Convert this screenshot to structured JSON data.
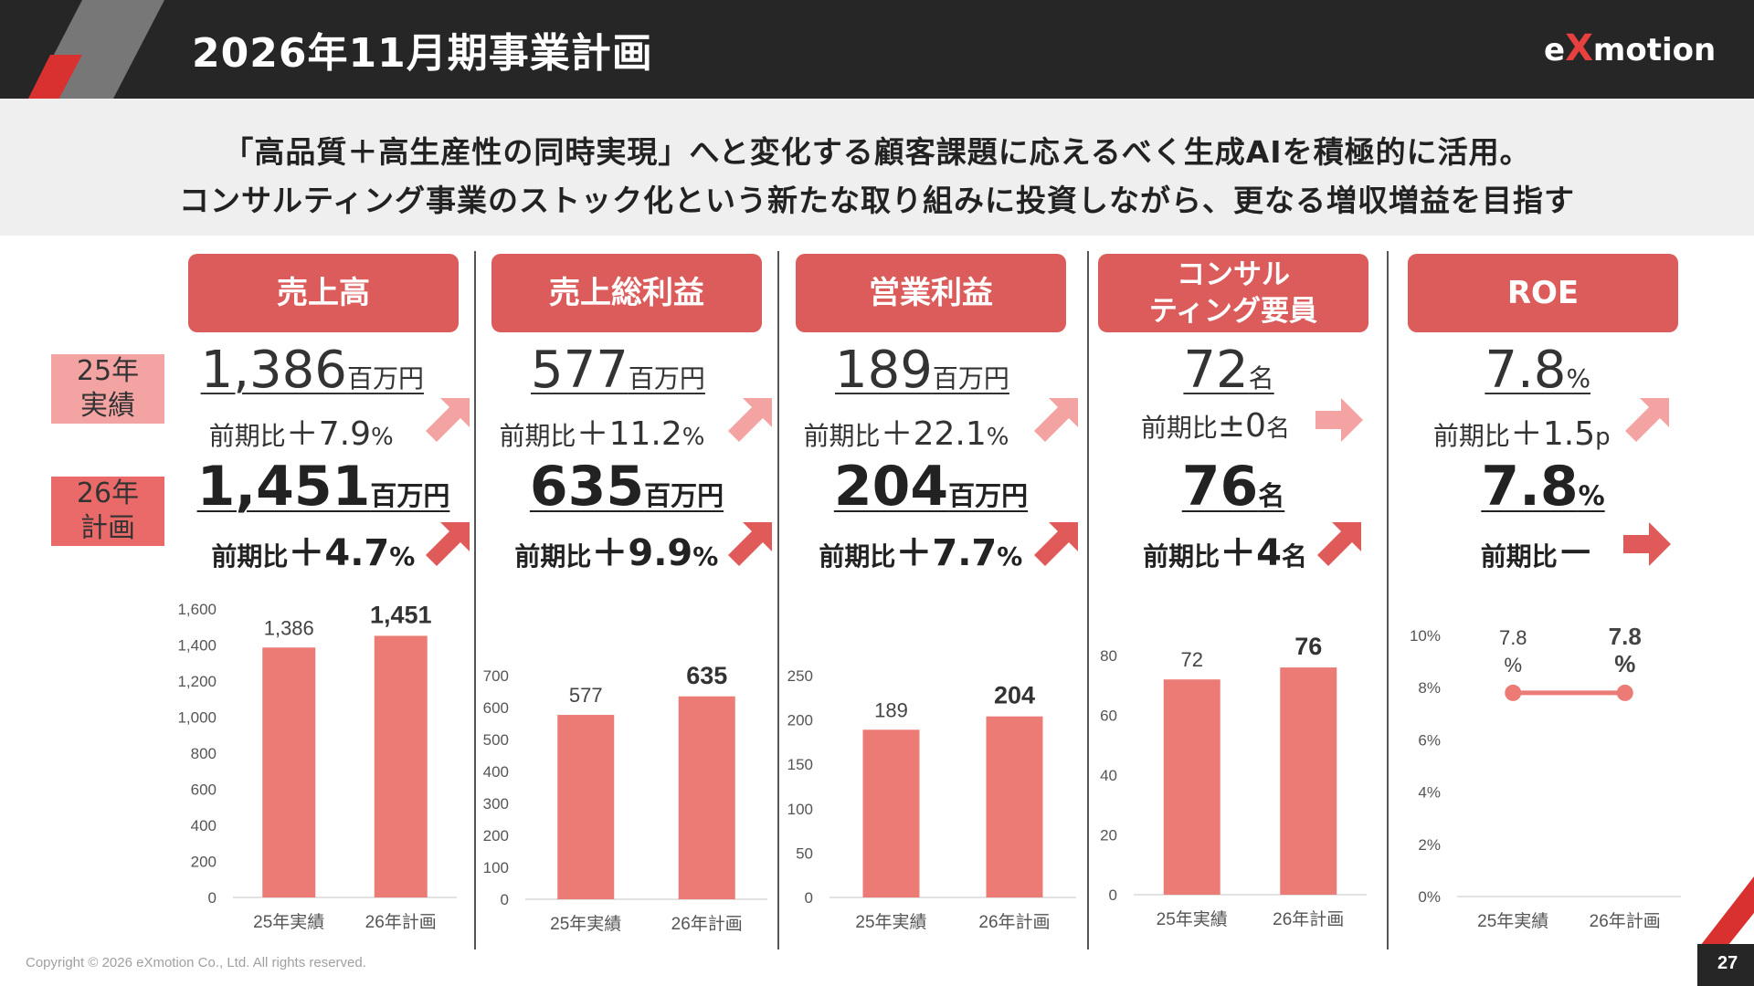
{
  "header": {
    "title": "2026年11月期事業計画",
    "logo_pre": "e",
    "logo_x": "X",
    "logo_post": "motion"
  },
  "subtitle": {
    "line1": "「高品質＋高生産性の同時実現」へと変化する顧客課題に応えるべく生成AIを積極的に活用。",
    "line2": "コンサルティング事業のストック化という新たな取り組みに投資しながら、更なる増収増益を目指す"
  },
  "labels": {
    "y25": "25年\n実績",
    "y26": "26年\n計画"
  },
  "colors": {
    "header_bg": "#262626",
    "accent": "#dc5c5c",
    "bar": "#ec7b76",
    "arrow_light": "#f4a3a3",
    "arrow_dark": "#e05a5a"
  },
  "kpis": [
    {
      "title": "売上高",
      "v25": "1,386",
      "u25": "百万円",
      "c25_pre": "前期比",
      "c25_sign": "＋",
      "c25_val": "7.9",
      "c25_unit": "%",
      "v26": "1,451",
      "u26": "百万円",
      "c26_pre": "前期比",
      "c26_sign": "＋",
      "c26_val": "4.7",
      "c26_unit": "%",
      "arrow25": "up",
      "arrow26": "up"
    },
    {
      "title": "売上総利益",
      "v25": "577",
      "u25": "百万円",
      "c25_pre": "前期比",
      "c25_sign": "＋",
      "c25_val": "11.2",
      "c25_unit": "%",
      "v26": "635",
      "u26": "百万円",
      "c26_pre": "前期比",
      "c26_sign": "＋",
      "c26_val": "9.9",
      "c26_unit": "%",
      "arrow25": "up",
      "arrow26": "up"
    },
    {
      "title": "営業利益",
      "v25": "189",
      "u25": "百万円",
      "c25_pre": "前期比",
      "c25_sign": "＋",
      "c25_val": "22.1",
      "c25_unit": "%",
      "v26": "204",
      "u26": "百万円",
      "c26_pre": "前期比",
      "c26_sign": "＋",
      "c26_val": "7.7",
      "c26_unit": "%",
      "arrow25": "up",
      "arrow26": "up"
    },
    {
      "title": "コンサル\nティング要員",
      "v25": "72",
      "u25": "名",
      "c25_pre": "前期比",
      "c25_sign": "±",
      "c25_val": "0",
      "c25_unit": "名",
      "v26": "76",
      "u26": "名",
      "c26_pre": "前期比",
      "c26_sign": "＋",
      "c26_val": "4",
      "c26_unit": "名",
      "arrow25": "right",
      "arrow26": "up"
    },
    {
      "title": "ROE",
      "v25": "7.8",
      "u25": "%",
      "c25_pre": "前期比",
      "c25_sign": "＋",
      "c25_val": "1.5",
      "c25_unit": "p",
      "v26": "7.8",
      "u26": "%",
      "c26_pre": "前期比",
      "c26_sign": "－",
      "c26_val": "",
      "c26_unit": "",
      "arrow25": "up",
      "arrow26": "right"
    }
  ],
  "chart_data": [
    {
      "type": "bar",
      "categories": [
        "25年実績",
        "26年計画"
      ],
      "values": [
        1386,
        1451
      ],
      "value_labels": [
        "1,386",
        "1,451"
      ],
      "ylim": [
        0,
        1600
      ],
      "yticks": [
        "0",
        "200",
        "400",
        "600",
        "800",
        "1,000",
        "1,200",
        "1,400",
        "1,600"
      ],
      "grid": false
    },
    {
      "type": "bar",
      "categories": [
        "25年実績",
        "26年計画"
      ],
      "values": [
        577,
        635
      ],
      "value_labels": [
        "577",
        "635"
      ],
      "ylim": [
        0,
        700
      ],
      "yticks": [
        "0",
        "100",
        "200",
        "300",
        "400",
        "500",
        "600",
        "700"
      ],
      "grid": false
    },
    {
      "type": "bar",
      "categories": [
        "25年実績",
        "26年計画"
      ],
      "values": [
        189,
        204
      ],
      "value_labels": [
        "189",
        "204"
      ],
      "ylim": [
        0,
        250
      ],
      "yticks": [
        "0",
        "50",
        "100",
        "150",
        "200",
        "250"
      ],
      "grid": false
    },
    {
      "type": "bar",
      "categories": [
        "25年実績",
        "26年計画"
      ],
      "values": [
        72,
        76
      ],
      "value_labels": [
        "72",
        "76"
      ],
      "ylim": [
        0,
        80
      ],
      "yticks": [
        "0",
        "20",
        "40",
        "60",
        "80"
      ],
      "grid": false
    },
    {
      "type": "line",
      "categories": [
        "25年実績",
        "26年計画"
      ],
      "values": [
        7.8,
        7.8
      ],
      "value_labels": [
        "7.8\n%",
        "7.8\n%"
      ],
      "ylim": [
        0,
        10
      ],
      "yticks": [
        "0%",
        "2%",
        "4%",
        "6%",
        "8%",
        "10%"
      ],
      "grid": false
    }
  ],
  "footer": {
    "copyright": "Copyright © 2026 eXmotion Co., Ltd. All rights reserved.",
    "page": "27"
  }
}
